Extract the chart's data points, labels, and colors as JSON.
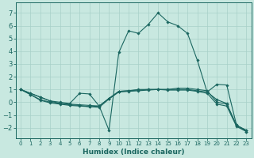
{
  "title": "",
  "xlabel": "Humidex (Indice chaleur)",
  "xlim": [
    -0.5,
    23.5
  ],
  "ylim": [
    -2.8,
    7.8
  ],
  "yticks": [
    -2,
    -1,
    0,
    1,
    2,
    3,
    4,
    5,
    6,
    7
  ],
  "xticks": [
    0,
    1,
    2,
    3,
    4,
    5,
    6,
    7,
    8,
    9,
    10,
    11,
    12,
    13,
    14,
    15,
    16,
    17,
    18,
    19,
    20,
    21,
    22,
    23
  ],
  "bg_color": "#c8e8e0",
  "grid_color": "#a8d0c8",
  "line_color": "#1a6660",
  "lines": [
    {
      "x": [
        0,
        1,
        2,
        3,
        4,
        5,
        6,
        7,
        8,
        9,
        10,
        11,
        12,
        13,
        14,
        15,
        16,
        17,
        18,
        19,
        20,
        21,
        22,
        23
      ],
      "y": [
        1.0,
        0.7,
        0.4,
        0.1,
        -0.1,
        -0.15,
        -0.2,
        -0.25,
        -0.3,
        0.3,
        0.85,
        0.9,
        1.0,
        1.0,
        1.0,
        1.0,
        1.1,
        1.1,
        1.0,
        0.9,
        0.0,
        -0.15,
        -1.8,
        -2.2
      ]
    },
    {
      "x": [
        0,
        1,
        2,
        3,
        4,
        5,
        6,
        7,
        8,
        9,
        10,
        11,
        12,
        13,
        14,
        15,
        16,
        17,
        18,
        19,
        20,
        21,
        22,
        23
      ],
      "y": [
        1.0,
        0.6,
        0.2,
        0.0,
        -0.1,
        -0.2,
        -0.25,
        -0.35,
        -0.3,
        0.3,
        0.85,
        0.9,
        0.95,
        1.0,
        1.0,
        1.0,
        1.0,
        1.0,
        0.9,
        0.8,
        1.4,
        1.35,
        -1.8,
        -2.3
      ]
    },
    {
      "x": [
        0,
        1,
        2,
        3,
        4,
        5,
        6,
        7,
        8,
        9,
        10,
        11,
        12,
        13,
        14,
        15,
        16,
        17,
        18,
        19,
        20,
        21,
        22,
        23
      ],
      "y": [
        1.0,
        0.7,
        0.4,
        0.1,
        0.0,
        -0.1,
        0.7,
        0.65,
        -0.3,
        -2.2,
        3.9,
        5.6,
        5.4,
        6.1,
        7.0,
        6.3,
        6.0,
        5.4,
        3.3,
        0.8,
        0.2,
        -0.1,
        -1.85,
        -2.2
      ]
    },
    {
      "x": [
        0,
        1,
        2,
        3,
        4,
        5,
        6,
        7,
        8,
        9,
        10,
        11,
        12,
        13,
        14,
        15,
        16,
        17,
        18,
        19,
        20,
        21,
        22,
        23
      ],
      "y": [
        1.0,
        0.6,
        0.15,
        -0.05,
        -0.15,
        -0.25,
        -0.3,
        -0.35,
        -0.4,
        0.25,
        0.8,
        0.85,
        0.9,
        0.95,
        1.0,
        0.95,
        0.95,
        0.95,
        0.85,
        0.7,
        -0.15,
        -0.3,
        -1.9,
        -2.3
      ]
    }
  ]
}
